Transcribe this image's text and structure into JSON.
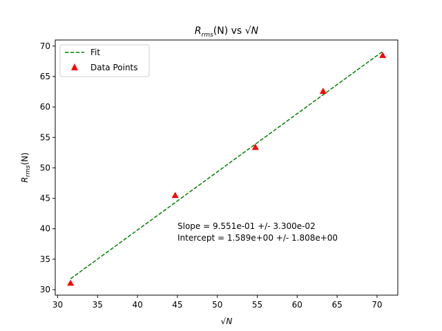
{
  "chart_data": {
    "type": "scatter",
    "title": "R_rms(N) vs √N",
    "xlabel": "√N",
    "ylabel": "R_rms(N)",
    "xlim": [
      29.7,
      72.6
    ],
    "ylim": [
      29.1,
      71.0
    ],
    "xticks": [
      30,
      35,
      40,
      45,
      50,
      55,
      60,
      65,
      70
    ],
    "yticks": [
      30,
      35,
      40,
      45,
      50,
      55,
      60,
      65,
      70
    ],
    "grid": false,
    "legend_position": "upper-left",
    "series": [
      {
        "name": "Fit",
        "kind": "line",
        "style": "dashed",
        "color": "#008000",
        "slope": 0.9551,
        "intercept": 1.589,
        "x": [
          31.62,
          70.71
        ],
        "values": [
          31.79,
          69.13
        ]
      },
      {
        "name": "Data Points",
        "kind": "scatter",
        "marker": "triangle-up",
        "color": "#ff0000",
        "x": [
          31.62,
          44.72,
          54.77,
          63.25,
          70.71
        ],
        "values": [
          31.1,
          45.5,
          53.4,
          62.6,
          68.5
        ]
      }
    ],
    "annotations": [
      "Slope = 9.551e-01 +/- 3.300e-02",
      "Intercept = 1.589e+00 +/- 1.808e+00"
    ]
  }
}
